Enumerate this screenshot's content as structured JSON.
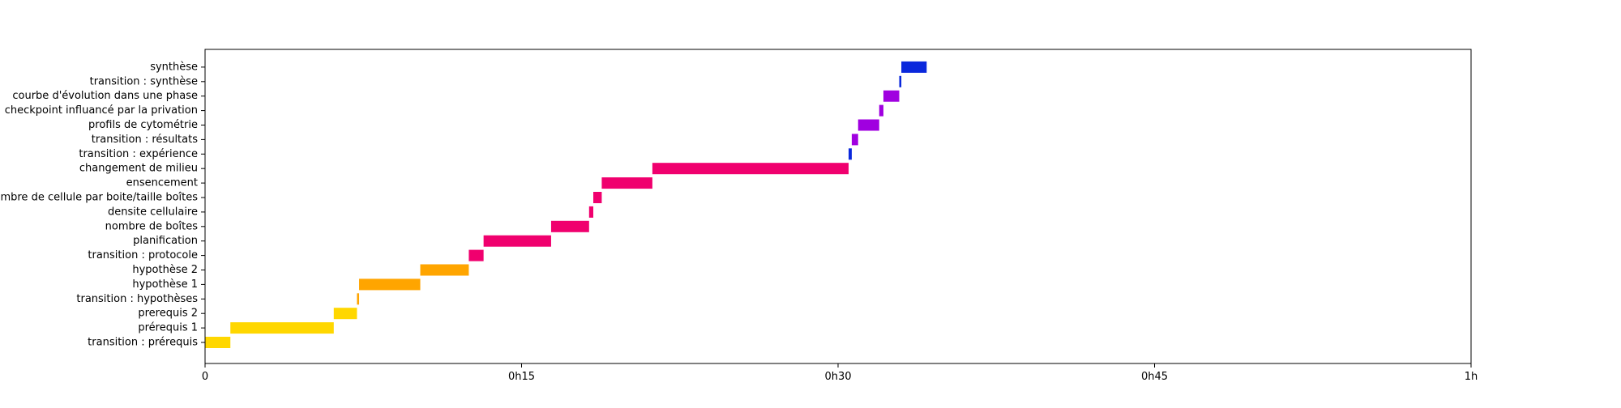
{
  "chart_data": {
    "type": "bar",
    "orientation": "horizontal-gantt",
    "title": "",
    "xlabel": "",
    "ylabel": "",
    "xlim": [
      0,
      60
    ],
    "x_unit": "minutes",
    "x_ticks": [
      {
        "value": 0,
        "label": "0"
      },
      {
        "value": 15,
        "label": "0h15"
      },
      {
        "value": 30,
        "label": "0h30"
      },
      {
        "value": 45,
        "label": "0h45"
      },
      {
        "value": 60,
        "label": "1h"
      }
    ],
    "grid": false,
    "legend": "none",
    "tasks": [
      {
        "label": "transition : prérequis",
        "start": 0.0,
        "end": 1.2,
        "color": "#FFD700"
      },
      {
        "label": "prérequis 1",
        "start": 1.2,
        "end": 6.1,
        "color": "#FFD700"
      },
      {
        "label": "prerequis 2",
        "start": 6.1,
        "end": 7.2,
        "color": "#FFD700"
      },
      {
        "label": "transition : hypothèses",
        "start": 7.2,
        "end": 7.3,
        "color": "#FFA500"
      },
      {
        "label": "hypothèse 1",
        "start": 7.3,
        "end": 10.2,
        "color": "#FFA500"
      },
      {
        "label": "hypothèse 2",
        "start": 10.2,
        "end": 12.5,
        "color": "#FFA500"
      },
      {
        "label": "transition : protocole",
        "start": 12.5,
        "end": 13.2,
        "color": "#F0006E"
      },
      {
        "label": "planification",
        "start": 13.2,
        "end": 16.4,
        "color": "#F0006E"
      },
      {
        "label": "nombre de boîtes",
        "start": 16.4,
        "end": 18.2,
        "color": "#F0006E"
      },
      {
        "label": "densite cellulaire",
        "start": 18.2,
        "end": 18.4,
        "color": "#F0006E"
      },
      {
        "label": "nombre de cellule par boite/taille boîtes",
        "start": 18.4,
        "end": 18.8,
        "color": "#F0006E"
      },
      {
        "label": "ensencement",
        "start": 18.8,
        "end": 21.2,
        "color": "#F0006E"
      },
      {
        "label": "changement de milieu",
        "start": 21.2,
        "end": 30.5,
        "color": "#F0006E"
      },
      {
        "label": "transition : expérience",
        "start": 30.5,
        "end": 30.65,
        "color": "#0A28DC"
      },
      {
        "label": "transition : résultats",
        "start": 30.65,
        "end": 30.95,
        "color": "#A000E0"
      },
      {
        "label": "profils de cytométrie",
        "start": 30.95,
        "end": 31.95,
        "color": "#A000E0"
      },
      {
        "label": "checkpoint influancé par la privation",
        "start": 31.95,
        "end": 32.15,
        "color": "#A000E0"
      },
      {
        "label": "courbe d'évolution dans une phase",
        "start": 32.15,
        "end": 32.9,
        "color": "#A000E0"
      },
      {
        "label": "transition : synthèse",
        "start": 32.9,
        "end": 33.0,
        "color": "#0A28DC"
      },
      {
        "label": "synthèse",
        "start": 33.0,
        "end": 34.2,
        "color": "#0A28DC"
      }
    ]
  }
}
